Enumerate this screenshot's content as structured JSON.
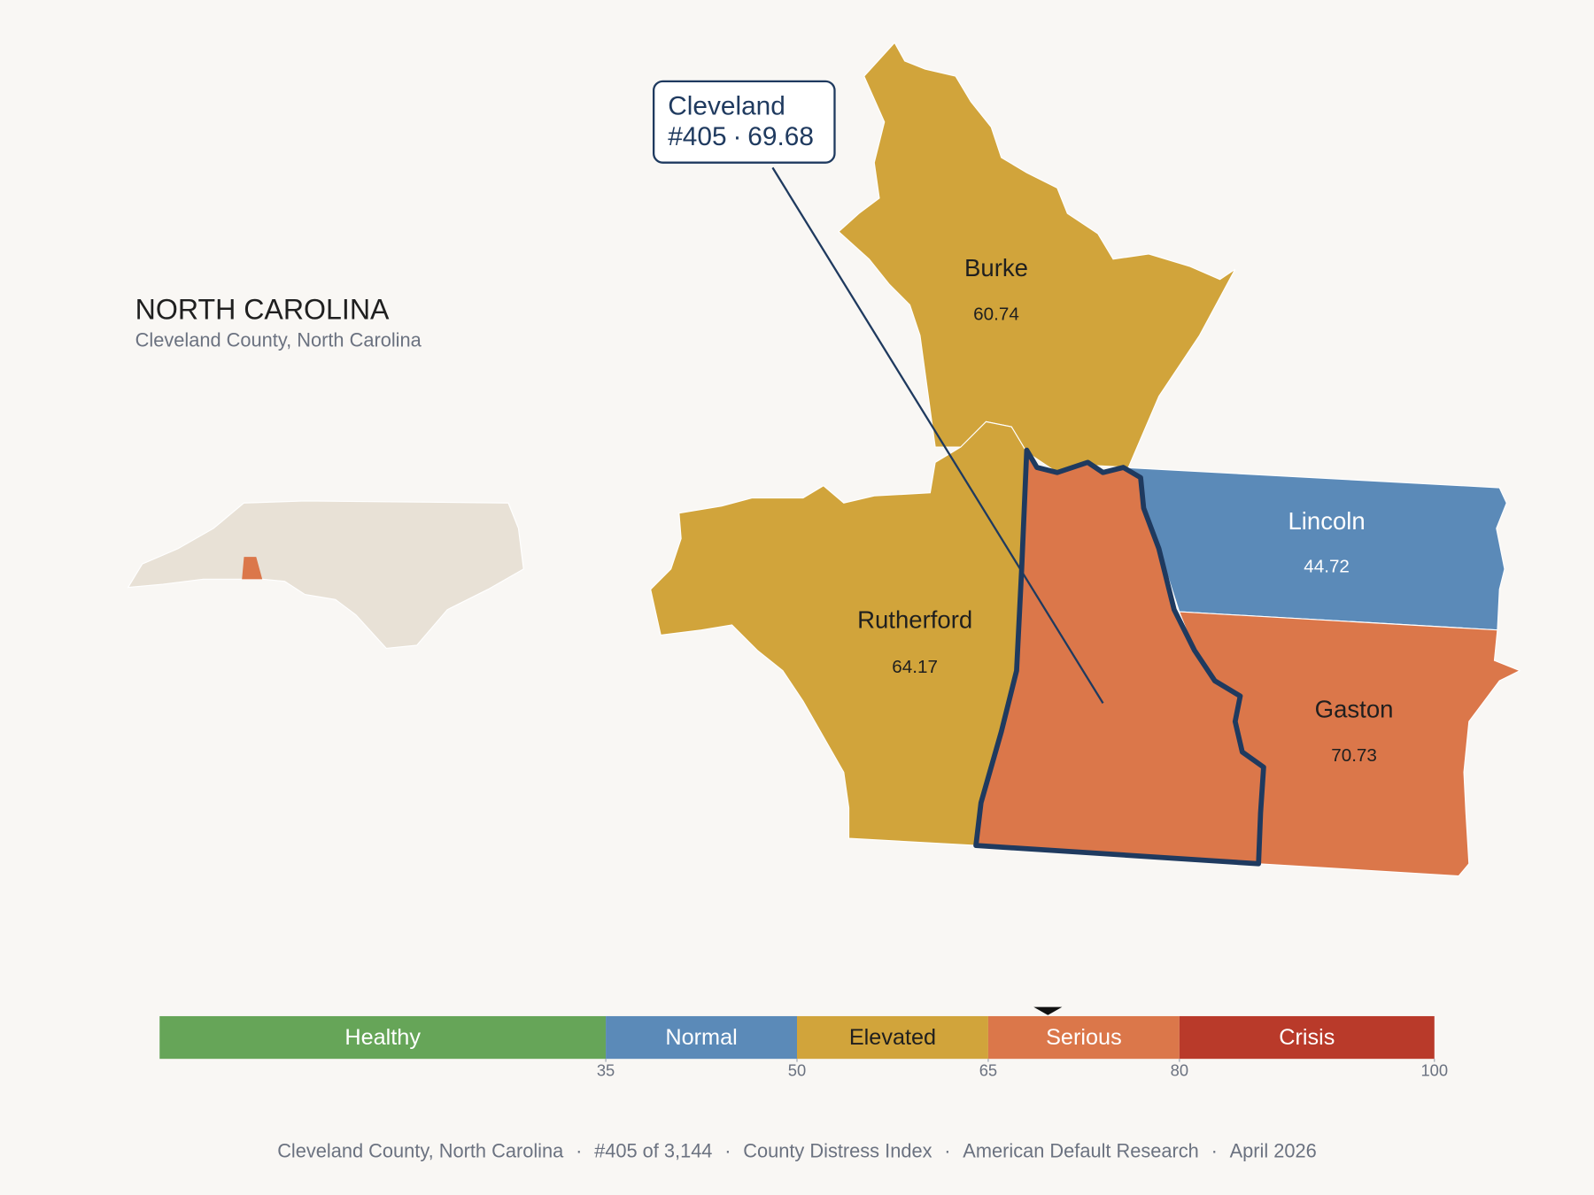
{
  "header": {
    "title": "NORTH CAROLINA",
    "subtitle": "Cleveland County, North Carolina"
  },
  "callout": {
    "name": "Cleveland",
    "rank": "#405",
    "separator": "·",
    "score": 69.68
  },
  "counties": [
    {
      "name": "Burke",
      "value": 60.74,
      "color": "#d1a43b"
    },
    {
      "name": "Rutherford",
      "value": 64.17,
      "color": "#d1a43b"
    },
    {
      "name": "Lincoln",
      "value": 44.72,
      "color": "#5b8ab8"
    },
    {
      "name": "Gaston",
      "value": 70.73,
      "color": "#db774a"
    },
    {
      "name": "Cleveland",
      "color": "#db774a"
    }
  ],
  "scale": {
    "lim": [
      0,
      100
    ],
    "ticks": [
      35,
      50,
      65,
      80,
      100
    ],
    "bands": [
      {
        "label": "Healthy",
        "color": "#66a558",
        "text_color": "#ffffff"
      },
      {
        "label": "Normal",
        "color": "#5b8ab8",
        "text_color": "#ffffff"
      },
      {
        "label": "Elevated",
        "color": "#d1a43b",
        "text_color": "#1f1f1f"
      },
      {
        "label": "Serious",
        "color": "#db774a",
        "text_color": "#ffffff"
      },
      {
        "label": "Crisis",
        "color": "#b93a2a",
        "text_color": "#ffffff"
      }
    ]
  },
  "footer": {
    "separator": "·",
    "items": [
      "Cleveland County, North Carolina",
      "#405 of 3,144",
      "County Distress Index",
      "American Default Research",
      "April 2026"
    ]
  }
}
